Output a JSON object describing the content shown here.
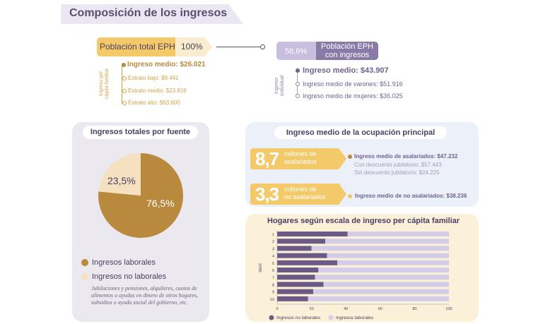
{
  "title": "Composición de los ingresos",
  "poblacion_total": {
    "label": "Población total EPH",
    "pct": "100%",
    "axis_label_line1": "Ingreso per",
    "axis_label_line2": "cápita familiar",
    "ingreso_medio": "Ingreso medio: $26.021",
    "estratos": [
      "Estrato bajo: $9.441",
      "Estrato medio: $23.819",
      "Estrato alto: $63.600"
    ]
  },
  "poblacion_con_ingresos": {
    "pct": "58,6%",
    "label_line1": "Población EPH",
    "label_line2": "con ingresos",
    "axis_label_line1": "Ingreso",
    "axis_label_line2": "individual",
    "ingreso_medio": "Ingreso medio: $43.907",
    "items": [
      "Ingreso medio de varones: $51.916",
      "Ingreso medio de mujeres: $36.025"
    ]
  },
  "fuentes": {
    "title": "Ingresos totales por fuente",
    "legend": [
      {
        "label": "Ingresos laborales",
        "color": "#b98a3e"
      },
      {
        "label": "Ingresos no laborales",
        "color": "#f5e0bf"
      }
    ],
    "note": "Jubilaciones y pensiones, alquileres, cuotas de alimentos o ayudas en dinero de otros hogares, subsidios o ayuda social del gobierno, etc."
  },
  "ocupacion": {
    "title": "Ingreso medio de la ocupación principal",
    "asalariados": {
      "number": "8,7",
      "label_line1": "millones de",
      "label_line2": "asalariados",
      "main": "Ingreso medio de asalariados: $47.232",
      "sub1": "Con descuento jubilatorio: $57.443",
      "sub2": "Sin descuento jubilatorio: $24.225"
    },
    "no_asalariados": {
      "number": "3,3",
      "label_line1": "millones de",
      "label_line2": "no asalariados",
      "main": "Ingreso medio de no asalariados: $38.236"
    }
  },
  "hogares": {
    "title": "Hogares según escala de ingreso per cápita familiar"
  },
  "chart_data": [
    {
      "type": "pie",
      "title": "Ingresos totales por fuente",
      "labels": [
        "Ingresos laborales",
        "Ingresos no laborales"
      ],
      "values": [
        76.5,
        23.5
      ],
      "display": [
        "76,5%",
        "23,5%"
      ],
      "colors": [
        "#b98a3e",
        "#f5e0bf"
      ]
    },
    {
      "type": "bar",
      "orientation": "horizontal",
      "stacked": true,
      "title": "Hogares según escala de ingreso per cápita familiar",
      "ylabel": "decil",
      "categories": [
        "1",
        "2",
        "3",
        "4",
        "5",
        "6",
        "7",
        "8",
        "9",
        "10"
      ],
      "xlim": [
        0,
        100
      ],
      "xticks": [
        "0",
        "20",
        "40",
        "60",
        "80",
        "100"
      ],
      "series": [
        {
          "name": "Ingresos no laborales",
          "color": "#6b5a85",
          "values": [
            41,
            28,
            20,
            29,
            35,
            24,
            22,
            27,
            21,
            18
          ]
        },
        {
          "name": "Ingresos laborales",
          "color": "#d4cde8",
          "values": [
            59,
            72,
            80,
            71,
            65,
            76,
            78,
            73,
            79,
            82
          ]
        }
      ],
      "legend": "bottom"
    }
  ]
}
